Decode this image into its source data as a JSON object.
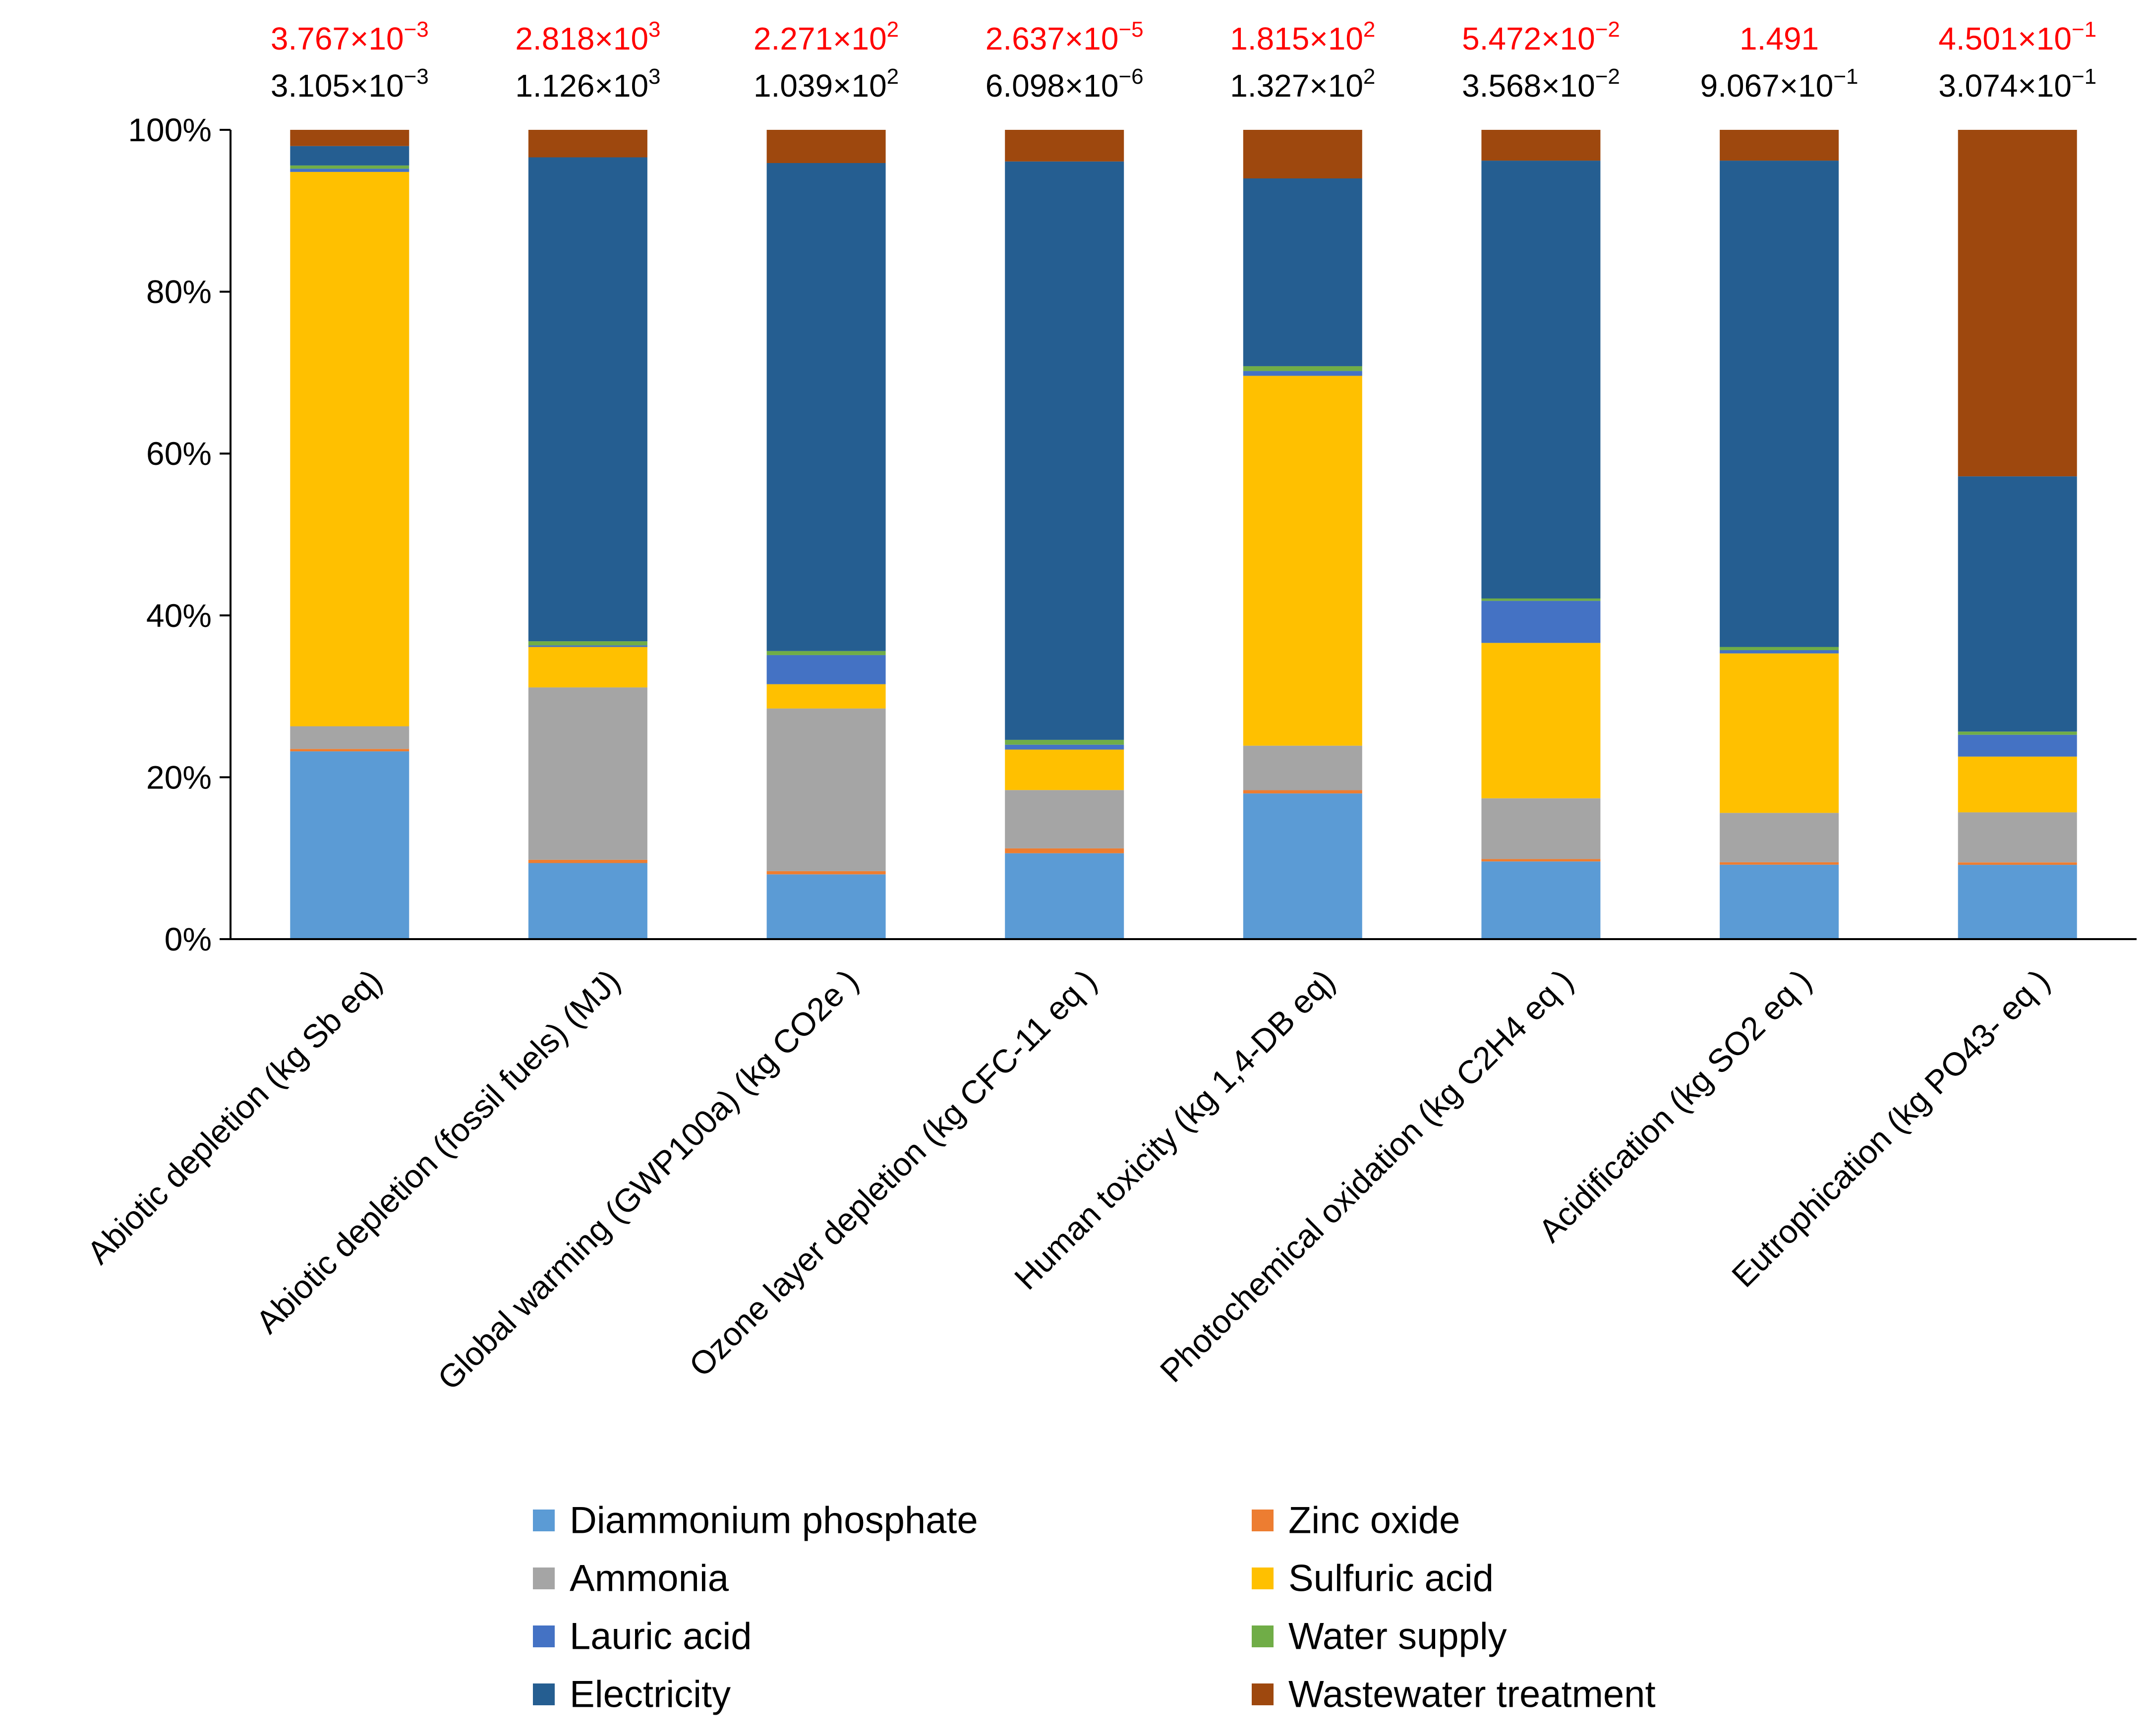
{
  "chart_data": {
    "type": "bar",
    "stacked": true,
    "normalized": true,
    "ylim": [
      0,
      100
    ],
    "y_ticks": [
      "0%",
      "20%",
      "40%",
      "60%",
      "80%",
      "100%"
    ],
    "grid": false,
    "legend_position": "bottom",
    "categories": [
      "Abiotic depletion (kg Sb eq)",
      "Abiotic depletion (fossil fuels) (MJ)",
      "Global warming (GWP100a) (kg CO2e )",
      "Ozone layer depletion (kg CFC-11 eq )",
      "Human toxicity (kg 1,4-DB eq)",
      "Photochemical oxidation (kg C2H4 eq )",
      "Acidification (kg SO2 eq )",
      "Eutrophication (kg PO43- eq )"
    ],
    "top_annotations": [
      {
        "mantissa": "3.767×10",
        "exp": "−3"
      },
      {
        "mantissa": "2.818×10",
        "exp": "3"
      },
      {
        "mantissa": "2.271×10",
        "exp": "2"
      },
      {
        "mantissa": "2.637×10",
        "exp": "−5"
      },
      {
        "mantissa": "1.815×10",
        "exp": "2"
      },
      {
        "mantissa": "5.472×10",
        "exp": "−2"
      },
      {
        "mantissa": "1.491",
        "exp": ""
      },
      {
        "mantissa": "4.501×10",
        "exp": "−1"
      }
    ],
    "bottom_annotations": [
      {
        "mantissa": "3.105×10",
        "exp": "−3"
      },
      {
        "mantissa": "1.126×10",
        "exp": "3"
      },
      {
        "mantissa": "1.039×10",
        "exp": "2"
      },
      {
        "mantissa": "6.098×10",
        "exp": "−6"
      },
      {
        "mantissa": "1.327×10",
        "exp": "2"
      },
      {
        "mantissa": "3.568×10",
        "exp": "−2"
      },
      {
        "mantissa": "9.067×10",
        "exp": "−1"
      },
      {
        "mantissa": "3.074×10",
        "exp": "−1"
      }
    ],
    "annotation_colors": {
      "top": "#ff0000",
      "bottom": "#000000"
    },
    "series": [
      {
        "name": "Diammonium phosphate",
        "color": "#5b9bd5",
        "values": [
          23.2,
          9.4,
          8.0,
          10.6,
          18.0,
          9.6,
          9.2,
          9.2
        ]
      },
      {
        "name": "Zinc oxide",
        "color": "#ed7d31",
        "values": [
          0.3,
          0.4,
          0.4,
          0.6,
          0.4,
          0.3,
          0.3,
          0.3
        ]
      },
      {
        "name": "Ammonia",
        "color": "#a5a5a5",
        "values": [
          2.8,
          21.3,
          20.1,
          7.2,
          5.5,
          7.5,
          6.1,
          6.2
        ]
      },
      {
        "name": "Sulfuric acid",
        "color": "#ffc000",
        "values": [
          68.5,
          5.0,
          3.0,
          5.0,
          45.7,
          19.2,
          19.7,
          6.9
        ]
      },
      {
        "name": "Lauric acid",
        "color": "#4472c4",
        "values": [
          0.4,
          0.2,
          3.6,
          0.6,
          0.6,
          5.2,
          0.4,
          2.7
        ]
      },
      {
        "name": "Water supply",
        "color": "#70ad47",
        "values": [
          0.4,
          0.5,
          0.5,
          0.6,
          0.6,
          0.3,
          0.4,
          0.4
        ]
      },
      {
        "name": "Electricity",
        "color": "#255e91",
        "values": [
          2.4,
          59.8,
          60.3,
          71.4,
          23.2,
          54.1,
          60.1,
          31.6
        ]
      },
      {
        "name": "Wastewater treatment",
        "color": "#9e480e",
        "values": [
          2.0,
          3.4,
          4.1,
          3.9,
          6.0,
          3.8,
          3.8,
          42.9
        ]
      }
    ],
    "legend_order": [
      "Diammonium phosphate",
      "Zinc oxide",
      "Ammonia",
      "Sulfuric acid",
      "Lauric acid",
      "Water supply",
      "Electricity",
      "Wastewater treatment"
    ]
  }
}
